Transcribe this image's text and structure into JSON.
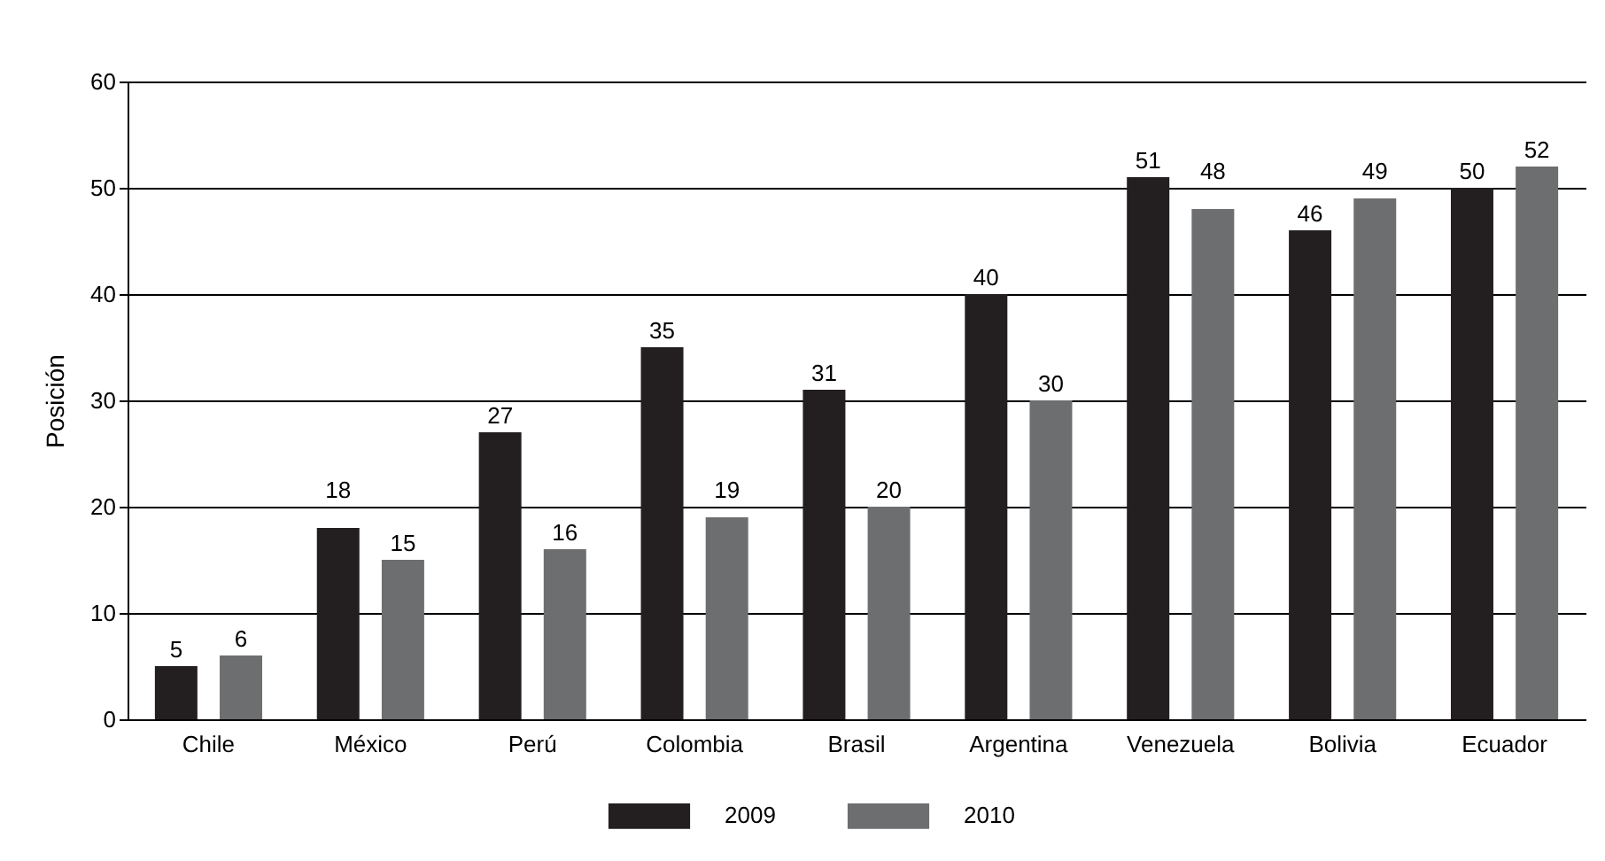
{
  "chart_data": {
    "type": "bar",
    "ylabel": "Posición",
    "categories": [
      "Chile",
      "México",
      "Perú",
      "Colombia",
      "Brasil",
      "Argentina",
      "Venezuela",
      "Bolivia",
      "Ecuador"
    ],
    "series": [
      {
        "name": "2009",
        "color": "#231f20",
        "values": [
          5,
          18,
          27,
          35,
          31,
          40,
          51,
          46,
          50
        ]
      },
      {
        "name": "2010",
        "color": "#6d6e70",
        "values": [
          6,
          15,
          16,
          19,
          20,
          30,
          48,
          49,
          52
        ]
      }
    ],
    "ylim": [
      0,
      60
    ],
    "yticks": [
      0,
      10,
      20,
      30,
      40,
      50,
      60
    ],
    "grid": "y",
    "legend": "bottom",
    "data_labels": true
  }
}
